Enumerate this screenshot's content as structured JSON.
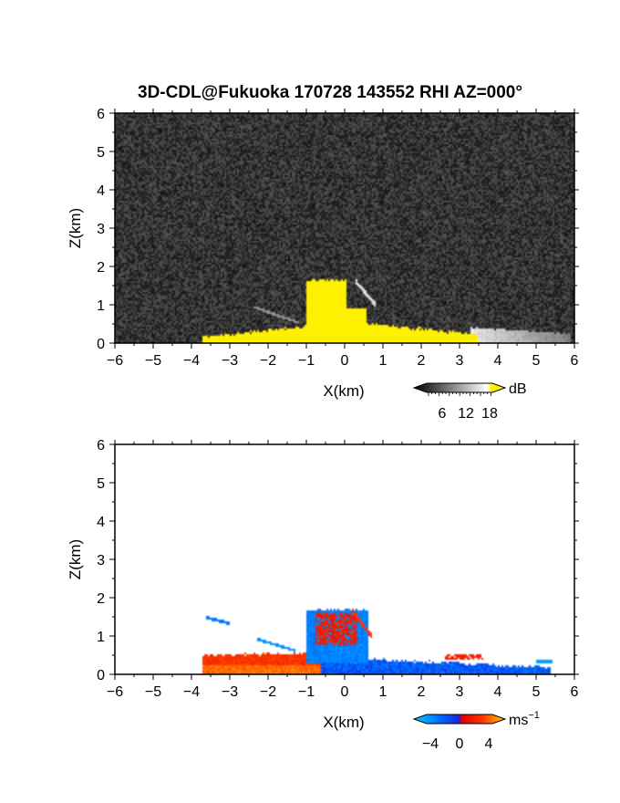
{
  "title": "3D-CDL@Fukuoka 170728 143552 RHI AZ=000°",
  "chart_data": [
    {
      "type": "heatmap",
      "panel": "reflectivity",
      "xlabel": "X(km)",
      "ylabel": "Z(km)",
      "xlim": [
        -6,
        6
      ],
      "ylim": [
        0,
        6
      ],
      "xticks": [
        -6,
        -5,
        -4,
        -3,
        -2,
        -1,
        0,
        1,
        2,
        3,
        4,
        5,
        6
      ],
      "yticks": [
        0,
        1,
        2,
        3,
        4,
        5,
        6
      ],
      "background": "noise",
      "colorbar": {
        "unit": "dB",
        "ticks": [
          "6",
          "12",
          "18"
        ],
        "range": [
          0,
          20
        ],
        "colors": [
          "#000000",
          "#ffffff",
          "#ffee00"
        ]
      },
      "regions": [
        {
          "x": [
            -3.7,
            3.5
          ],
          "z": [
            0.0,
            0.55
          ],
          "level": "saturated"
        },
        {
          "x": [
            -1.0,
            0.0
          ],
          "z": [
            0.5,
            1.65
          ],
          "level": "saturated"
        },
        {
          "x": [
            3.5,
            5.8
          ],
          "z": [
            0.0,
            0.4
          ],
          "level": "moderate"
        }
      ]
    },
    {
      "type": "heatmap",
      "panel": "doppler_velocity",
      "xlabel": "X(km)",
      "ylabel": "Z(km)",
      "xlim": [
        -6,
        6
      ],
      "ylim": [
        0,
        6
      ],
      "xticks": [
        -6,
        -5,
        -4,
        -3,
        -2,
        -1,
        0,
        1,
        2,
        3,
        4,
        5,
        6
      ],
      "yticks": [
        0,
        1,
        2,
        3,
        4,
        5,
        6
      ],
      "colorbar": {
        "unit": "ms",
        "unit_exp": "−1",
        "ticks": [
          "−4",
          "0",
          "4"
        ],
        "range": [
          -6,
          6
        ],
        "colors": [
          "#00ccff",
          "#0044ff",
          "#ff0000",
          "#ffcc00"
        ]
      },
      "regions": [
        {
          "x": [
            -3.7,
            -1.0
          ],
          "z": [
            0.0,
            0.6
          ],
          "velocity": 3
        },
        {
          "x": [
            -1.0,
            0.6
          ],
          "z": [
            0.5,
            1.7
          ],
          "velocity": -4
        },
        {
          "x": [
            -0.7,
            0.5
          ],
          "z": [
            0.7,
            1.7
          ],
          "velocity": 2
        },
        {
          "x": [
            0.0,
            5.4
          ],
          "z": [
            0.0,
            0.45
          ],
          "velocity": -2
        }
      ]
    }
  ]
}
